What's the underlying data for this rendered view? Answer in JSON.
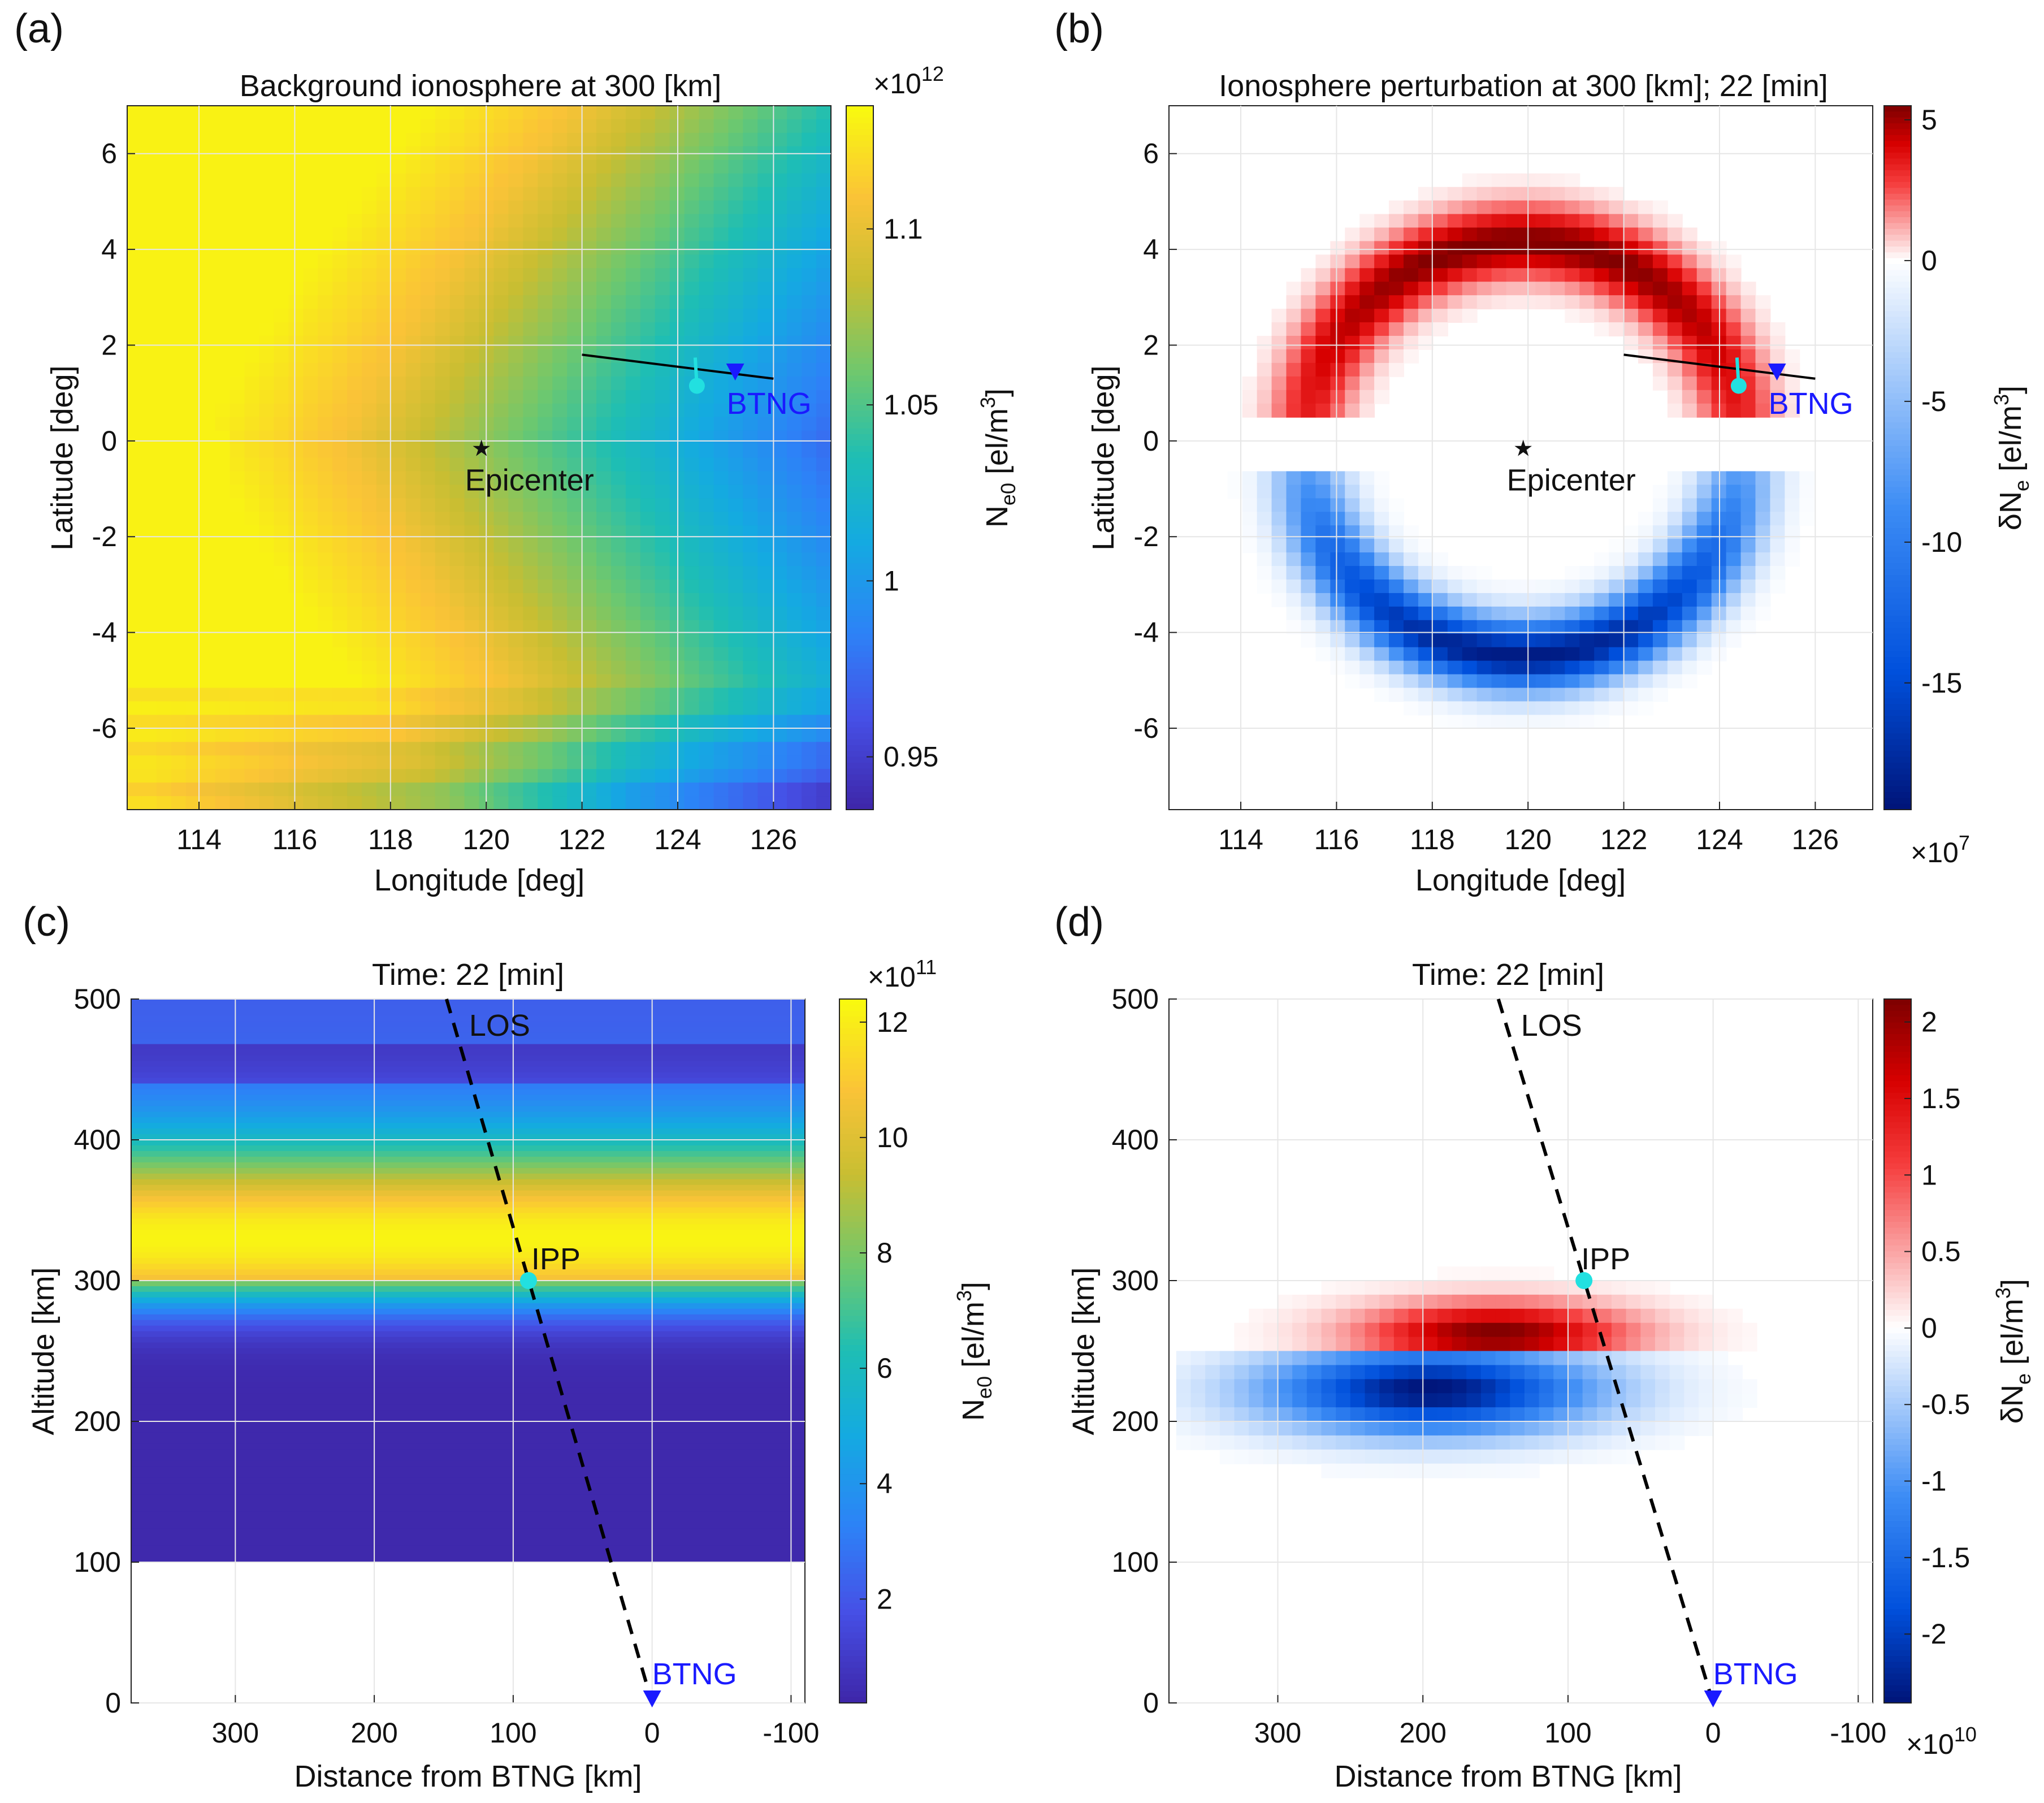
{
  "chart_data": [
    {
      "id": "a",
      "type": "heatmap",
      "panel_label": "(a)",
      "title": "Background ionosphere at 300 [km]",
      "xlabel": "Longitude [deg]",
      "ylabel": "Latitude [deg]",
      "xlim": [
        112.5,
        127.2
      ],
      "ylim": [
        -7.7,
        7.0
      ],
      "xticks": [
        "114",
        "116",
        "118",
        "120",
        "122",
        "124",
        "126"
      ],
      "yticks": [
        "6",
        "4",
        "2",
        "0",
        "-2",
        "-4",
        "-6"
      ],
      "colorbar": {
        "label_main": "N",
        "label_sub": "e0",
        "label_unit": " [el/m",
        "label_exp": "3",
        "label_end": "]",
        "ticks": [
          "1.1",
          "1.05",
          "1",
          "0.95"
        ],
        "range": [
          0.935,
          1.135
        ],
        "multiplier_base": "×10",
        "multiplier_exp": "12",
        "colormap": "parula"
      },
      "markers": [
        {
          "name": "Epicenter",
          "lon": 119.9,
          "lat": -0.15,
          "symbol": "star"
        },
        {
          "name": "BTNG",
          "lon": 125.2,
          "lat": 1.45,
          "symbol": "triangle-down"
        }
      ],
      "satellite_track": {
        "start": [
          122.0,
          1.8
        ],
        "end": [
          126.0,
          1.3
        ]
      },
      "ipp": {
        "lon": 124.4,
        "lat": 1.15
      },
      "colors": {
        "track": "#000000",
        "ipp": "#22e0e0",
        "station": "#1a1aff"
      }
    },
    {
      "id": "b",
      "type": "heatmap",
      "panel_label": "(b)",
      "title": "Ionosphere perturbation at 300 [km]; 22 [min]",
      "xlabel": "Longitude [deg]",
      "ylabel": "Latitude [deg]",
      "xlim": [
        112.5,
        127.2
      ],
      "ylim": [
        -7.7,
        7.0
      ],
      "xticks": [
        "114",
        "116",
        "118",
        "120",
        "122",
        "124",
        "126"
      ],
      "yticks": [
        "6",
        "4",
        "2",
        "0",
        "-2",
        "-4",
        "-6"
      ],
      "colorbar": {
        "label_main": "δN",
        "label_sub": "e",
        "label_unit": " [el/m",
        "label_exp": "3",
        "label_end": "]",
        "ticks": [
          "5",
          "0",
          "-5",
          "-10",
          "-15"
        ],
        "range": [
          -19.5,
          5.5
        ],
        "multiplier_base": "×10",
        "multiplier_exp": "7",
        "colormap": "diverging"
      },
      "markers": [
        {
          "name": "Epicenter",
          "lon": 119.9,
          "lat": -0.15,
          "symbol": "star"
        },
        {
          "name": "BTNG",
          "lon": 125.2,
          "lat": 1.45,
          "symbol": "triangle-down"
        }
      ],
      "satellite_track": {
        "start": [
          122.0,
          1.8
        ],
        "end": [
          126.0,
          1.3
        ]
      },
      "ipp": {
        "lon": 124.4,
        "lat": 1.15
      },
      "colors": {
        "track": "#000000",
        "ipp": "#22e0e0",
        "station": "#1a1aff"
      }
    },
    {
      "id": "c",
      "type": "heatmap",
      "panel_label": "(c)",
      "title": "Time: 22 [min]",
      "xlabel": "Distance from BTNG [km]",
      "ylabel": "Altitude [km]",
      "xlim": [
        375,
        -110
      ],
      "ylim": [
        0,
        500
      ],
      "xticks": [
        "300",
        "200",
        "100",
        "0",
        "-100"
      ],
      "yticks": [
        "500",
        "400",
        "300",
        "200",
        "100",
        "0"
      ],
      "colorbar": {
        "label_main": "N",
        "label_sub": "e0",
        "label_unit": " [el/m",
        "label_exp": "3",
        "label_end": "]",
        "ticks": [
          "12",
          "10",
          "8",
          "6",
          "4",
          "2"
        ],
        "range": [
          0.2,
          12.4
        ],
        "multiplier_base": "×10",
        "multiplier_exp": "11",
        "colormap": "parula"
      },
      "los": {
        "label": "LOS",
        "start": [
          148,
          500
        ],
        "end": [
          0,
          0
        ]
      },
      "ipp": {
        "label": "IPP",
        "distance": 89,
        "altitude": 300
      },
      "station": {
        "label": "BTNG",
        "distance": 0,
        "altitude": 0
      },
      "colors": {
        "ipp": "#22e0e0",
        "station": "#1a1aff"
      }
    },
    {
      "id": "d",
      "type": "heatmap",
      "panel_label": "(d)",
      "title": "Time: 22 [min]",
      "xlabel": "Distance from BTNG [km]",
      "ylabel": "Altitude [km]",
      "xlim": [
        375,
        -110
      ],
      "ylim": [
        0,
        500
      ],
      "xticks": [
        "300",
        "200",
        "100",
        "0",
        "-100"
      ],
      "yticks": [
        "500",
        "400",
        "300",
        "200",
        "100",
        "0"
      ],
      "colorbar": {
        "label_main": "δN",
        "label_sub": "e",
        "label_unit": " [el/m",
        "label_exp": "3",
        "label_end": "]",
        "ticks": [
          "2",
          "1.5",
          "1",
          "0.5",
          "0",
          "-0.5",
          "-1",
          "-1.5",
          "-2"
        ],
        "range": [
          -2.45,
          2.15
        ],
        "multiplier_base": "×10",
        "multiplier_exp": "10",
        "colormap": "diverging"
      },
      "los": {
        "label": "LOS",
        "start": [
          148,
          500
        ],
        "end": [
          0,
          0
        ]
      },
      "ipp": {
        "label": "IPP",
        "distance": 89,
        "altitude": 300
      },
      "station": {
        "label": "BTNG",
        "distance": 0,
        "altitude": 0
      },
      "colors": {
        "ipp": "#22e0e0",
        "station": "#1a1aff"
      }
    }
  ]
}
